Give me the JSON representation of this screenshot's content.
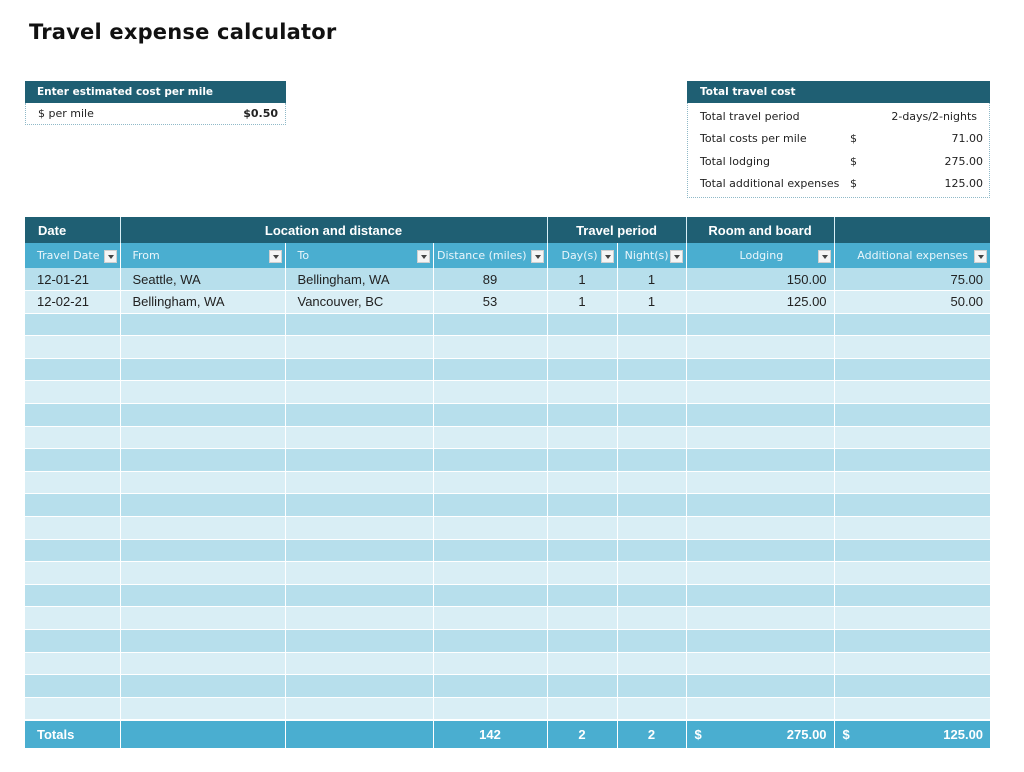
{
  "title": "Travel expense calculator",
  "cost_per_mile": {
    "header": "Enter estimated cost per mile",
    "label": "$ per mile",
    "value": "$0.50"
  },
  "total_travel_cost": {
    "header": "Total travel cost",
    "rows": [
      {
        "label": "Total travel period",
        "currency": "",
        "value": "2-days/2-nights"
      },
      {
        "label": "Total costs per mile",
        "currency": "$",
        "value": "71.00"
      },
      {
        "label": "Total lodging",
        "currency": "$",
        "value": "275.00"
      },
      {
        "label": "Total additional expenses",
        "currency": "$",
        "value": "125.00"
      }
    ]
  },
  "table": {
    "groups": [
      "Date",
      "Location and distance",
      "Travel period",
      "Room and board",
      ""
    ],
    "columns": [
      "Travel Date",
      "From",
      "To",
      "Distance (miles)",
      "Day(s)",
      "Night(s)",
      "Lodging",
      "Additional expenses"
    ],
    "rows": [
      [
        "12-01-21",
        "Seattle, WA",
        "Bellingham, WA",
        "89",
        "1",
        "1",
        "150.00",
        "75.00"
      ],
      [
        "12-02-21",
        "Bellingham, WA",
        "Vancouver, BC",
        "53",
        "1",
        "1",
        "125.00",
        "50.00"
      ]
    ],
    "empty_rows": 18,
    "totals": {
      "label": "Totals",
      "distance": "142",
      "days": "2",
      "nights": "2",
      "lodging_currency": "$",
      "lodging": "275.00",
      "additional_currency": "$",
      "additional": "125.00"
    }
  },
  "colors": {
    "dark_header": "#1f5f73",
    "sub_header": "#4aaed0",
    "row_odd": "#b7dfec",
    "row_even": "#d9eef5"
  }
}
